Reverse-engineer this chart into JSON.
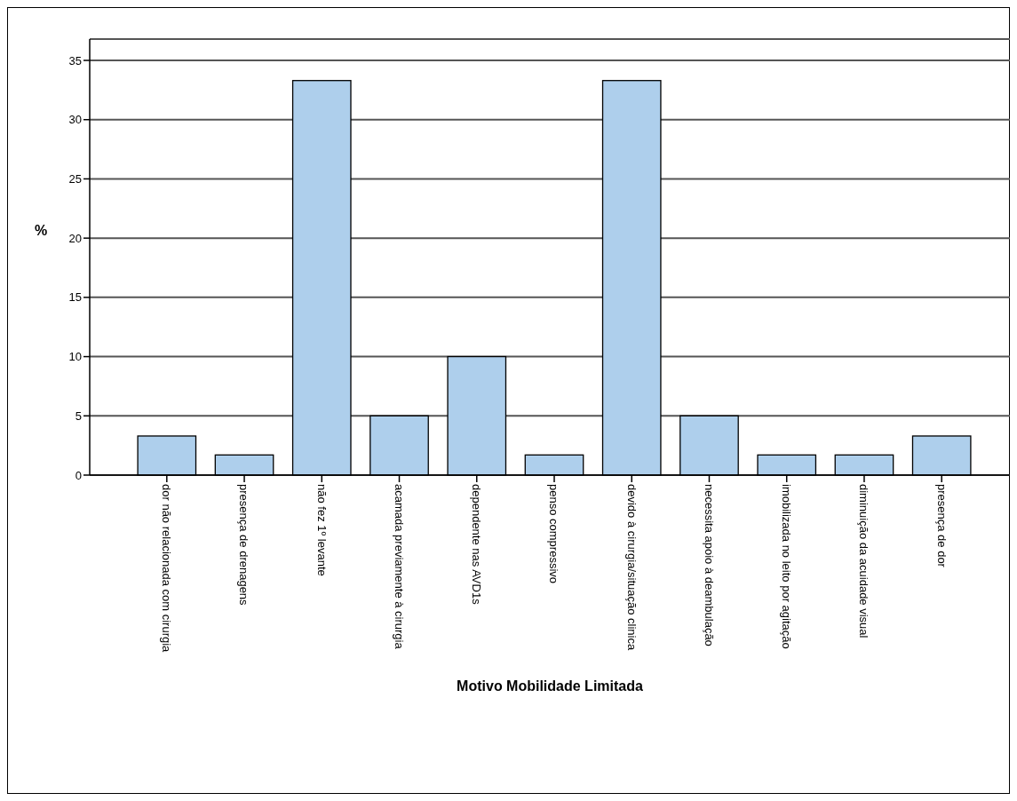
{
  "chart_data": {
    "type": "bar",
    "xlabel": "Motivo Mobilidade Limitada",
    "ylabel": "%",
    "categories": [
      "dor não relacionada com cirurgia",
      "presença de drenagens",
      "não fez 1º levante",
      "acamada previamente à cirurgia",
      "dependente nas AVD1s",
      "penso compressivo",
      "devido à cirurgia/situação clinica",
      "necessita apoio à deambulação",
      "imobilizada no leito por agitação",
      "diminuição da acuidade visual",
      "presença de dor"
    ],
    "values": [
      3.3,
      1.7,
      33.3,
      5,
      10,
      1.7,
      33.3,
      5,
      1.7,
      1.7,
      3.3
    ],
    "color": "#aecfec",
    "ylim": [
      0,
      36.8
    ],
    "yticks": [
      0,
      5,
      10,
      15,
      20,
      25,
      30,
      35
    ],
    "grid": "y"
  }
}
